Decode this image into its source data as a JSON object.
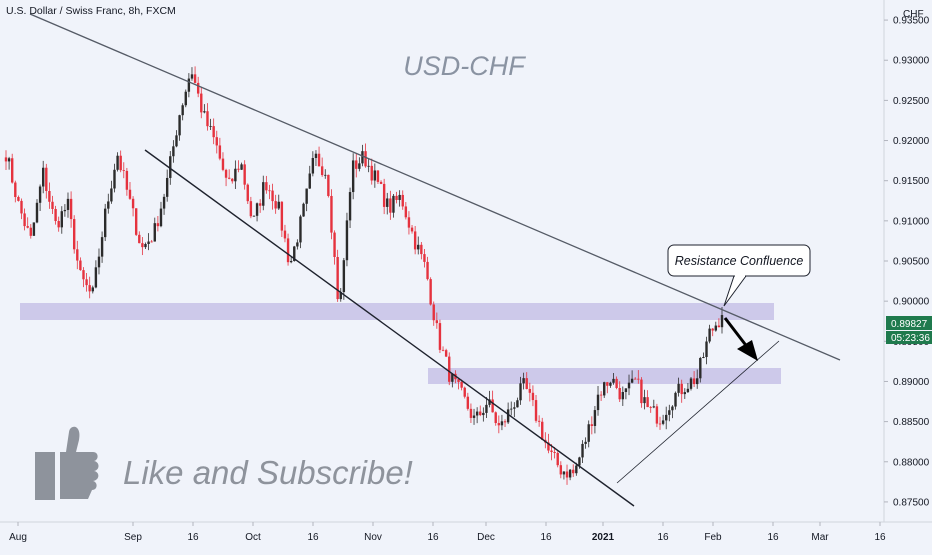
{
  "header": {
    "symbol_line": "U.S. Dollar / Swiss Franc, 8h, FXCM",
    "currency_label": "CHF"
  },
  "chart_data": {
    "type": "candlestick",
    "title": "USD-CHF",
    "x_ticks": [
      "Aug",
      "Sep",
      "16",
      "Oct",
      "16",
      "Nov",
      "16",
      "Dec",
      "16",
      "2021",
      "16",
      "Feb",
      "16",
      "Mar",
      "16"
    ],
    "y_ticks": [
      "0.93500",
      "0.93000",
      "0.92500",
      "0.92000",
      "0.91500",
      "0.91000",
      "0.90500",
      "0.90000",
      "0.89500",
      "0.89000",
      "0.88500",
      "0.88000",
      "0.87500"
    ],
    "ylim": [
      0.8725,
      0.9375
    ],
    "last_price": {
      "value": "0.89827",
      "countdown": "05:23:36"
    },
    "close_path": [
      [
        "Aug",
        0.9185
      ],
      [
        "Aug",
        0.912
      ],
      [
        "Aug",
        0.9075
      ],
      [
        "Aug",
        0.916
      ],
      [
        "Aug",
        0.9095
      ],
      [
        "Aug",
        0.912
      ],
      [
        "Aug",
        0.903
      ],
      [
        "Sep",
        0.9005
      ],
      [
        "Sep",
        0.9105
      ],
      [
        "Sep",
        0.9185
      ],
      [
        "Sep",
        0.9125
      ],
      [
        "Sep",
        0.9065
      ],
      [
        "16",
        0.9085
      ],
      [
        "16",
        0.9145
      ],
      [
        "16",
        0.923
      ],
      [
        "16",
        0.929
      ],
      [
        "Oct",
        0.923
      ],
      [
        "Oct",
        0.9195
      ],
      [
        "Oct",
        0.914
      ],
      [
        "16",
        0.9175
      ],
      [
        "16",
        0.9095
      ],
      [
        "16",
        0.915
      ],
      [
        "16",
        0.912
      ],
      [
        "Nov",
        0.9045
      ],
      [
        "Nov",
        0.9105
      ],
      [
        "Nov",
        0.918
      ],
      [
        "Nov",
        0.916
      ],
      [
        "Nov",
        0.8985
      ],
      [
        "Nov",
        0.9165
      ],
      [
        "Nov",
        0.918
      ],
      [
        "16",
        0.915
      ],
      [
        "16",
        0.9115
      ],
      [
        "16",
        0.913
      ],
      [
        "16",
        0.908
      ],
      [
        "Dec",
        0.904
      ],
      [
        "Dec",
        0.8955
      ],
      [
        "Dec",
        0.8905
      ],
      [
        "Dec",
        0.888
      ],
      [
        "16",
        0.885
      ],
      [
        "16",
        0.8875
      ],
      [
        "16",
        0.884
      ],
      [
        "16",
        0.887
      ],
      [
        "16",
        0.8895
      ],
      [
        "2021",
        0.8855
      ],
      [
        "2021",
        0.881
      ],
      [
        "2021",
        0.879
      ],
      [
        "2021",
        0.8785
      ],
      [
        "2021",
        0.883
      ],
      [
        "2021",
        0.8885
      ],
      [
        "2021",
        0.8905
      ],
      [
        "16",
        0.888
      ],
      [
        "16",
        0.89
      ],
      [
        "16",
        0.8865
      ],
      [
        "16",
        0.8855
      ],
      [
        "16",
        0.888
      ],
      [
        "16",
        0.8895
      ],
      [
        "Feb",
        0.8905
      ],
      [
        "Feb",
        0.896
      ],
      [
        "Feb",
        0.8983
      ]
    ],
    "support_resistance_zones": [
      {
        "from": 0.899,
        "to": 0.9008
      },
      {
        "from": 0.8902,
        "to": 0.892
      }
    ],
    "trendlines": [
      {
        "name": "descending-resistance",
        "start": [
          "Aug",
          0.9385
        ],
        "end": [
          "Mar",
          0.8935
        ]
      },
      {
        "name": "descending-channel-support",
        "start": [
          "Sep",
          0.9205
        ],
        "end": [
          "2021",
          0.8755
        ]
      },
      {
        "name": "ascending-support",
        "start": [
          "2021",
          0.8765
        ],
        "end": [
          "Feb",
          0.8965
        ]
      }
    ],
    "annotations": {
      "callout": "Resistance Confluence",
      "watermark": "Like and Subscribe!"
    },
    "colors": {
      "up_candle": "#2b2b2b",
      "down_candle": "#e5323e",
      "zone": "#b9b3e0",
      "last_price_badge": "#1f7a4d",
      "title": "#8a93a2",
      "background": "#f0f3fa"
    },
    "grid": false
  }
}
